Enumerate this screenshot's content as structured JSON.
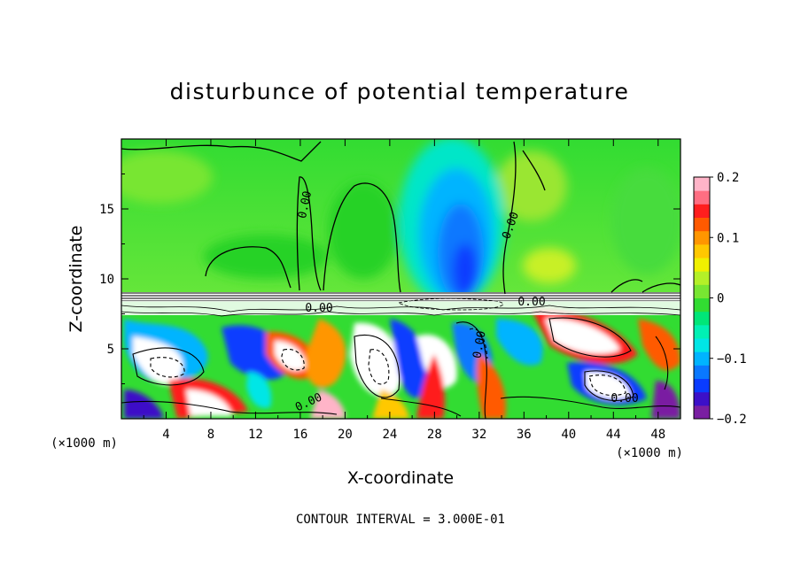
{
  "chart_data": {
    "type": "heatmap",
    "title": "disturbunce of potential temperature",
    "xlabel": "X-coordinate",
    "ylabel": "Z-coordinate",
    "x_unit_left": "(×1000 m)",
    "x_unit_right": "(×1000 m)",
    "xlim": [
      0,
      50
    ],
    "ylim": [
      0,
      20
    ],
    "x_ticks": [
      4,
      8,
      12,
      16,
      20,
      24,
      28,
      32,
      36,
      40,
      44,
      48
    ],
    "y_ticks": [
      5,
      10,
      15
    ],
    "colorbar": {
      "range": [
        -0.2,
        0.2
      ],
      "ticks": [
        0.2,
        0.1,
        0,
        -0.1,
        -0.2
      ],
      "tick_labels": [
        "0.2",
        "0.1",
        "0",
        "−0.1",
        "−0.2"
      ],
      "colors": [
        "#7a1fa2",
        "#3c10c8",
        "#0a3cff",
        "#0a78ff",
        "#00b4ff",
        "#00e6e6",
        "#00f0b4",
        "#00e678",
        "#32dc32",
        "#78e632",
        "#b4f028",
        "#f0f000",
        "#ffc800",
        "#ff9600",
        "#ff5a00",
        "#ff1e1e",
        "#ff6e82",
        "#ffb4c8"
      ]
    },
    "contour_labels": [
      "0.00",
      "0.00",
      "0.00",
      "0.00",
      "0.00",
      "0.00",
      "0.00"
    ],
    "note": "CONTOUR INTERVAL = 3.000E-01",
    "grid": false
  }
}
